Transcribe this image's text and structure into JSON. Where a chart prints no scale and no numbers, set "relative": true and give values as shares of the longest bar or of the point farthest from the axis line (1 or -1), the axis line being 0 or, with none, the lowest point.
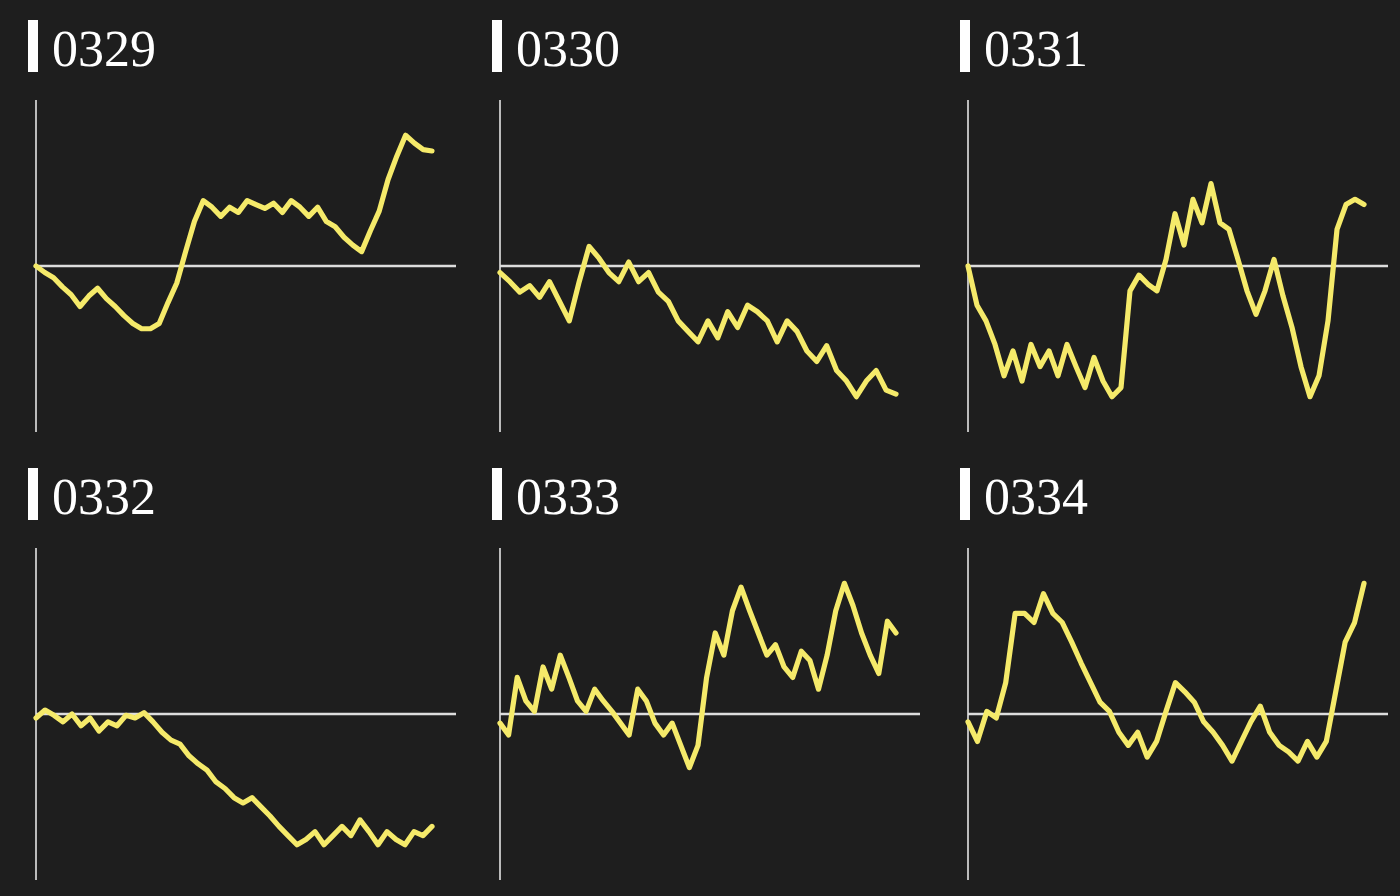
{
  "chart_data": [
    {
      "type": "line",
      "title": "0329",
      "relative": true,
      "color": "#f5ea6a",
      "categories": [
        null,
        null,
        null,
        null,
        null,
        null,
        null,
        null,
        null,
        null,
        null,
        null,
        null,
        null,
        null,
        null,
        null,
        null,
        null,
        null,
        null,
        null,
        null,
        null,
        null,
        null,
        null,
        null,
        null,
        null,
        null,
        null,
        null,
        null,
        null,
        null,
        null,
        null,
        null,
        null,
        null,
        null,
        null,
        null,
        null,
        null
      ],
      "values": [
        0,
        -0.05,
        -0.09,
        -0.16,
        -0.22,
        -0.31,
        -0.23,
        -0.17,
        -0.25,
        -0.31,
        -0.38,
        -0.44,
        -0.48,
        -0.48,
        -0.44,
        -0.28,
        -0.13,
        0.11,
        0.34,
        0.5,
        0.45,
        0.38,
        0.45,
        0.41,
        0.5,
        0.47,
        0.44,
        0.48,
        0.41,
        0.5,
        0.45,
        0.38,
        0.45,
        0.34,
        0.3,
        0.22,
        0.16,
        0.11,
        0.27,
        0.42,
        0.66,
        0.84,
        1,
        0.94,
        0.89,
        0.88
      ]
    },
    {
      "type": "line",
      "title": "0330",
      "relative": true,
      "color": "#f5ea6a",
      "categories": [
        null,
        null,
        null,
        null,
        null,
        null,
        null,
        null,
        null,
        null,
        null,
        null,
        null,
        null,
        null,
        null,
        null,
        null,
        null,
        null,
        null,
        null,
        null,
        null,
        null,
        null,
        null,
        null,
        null,
        null,
        null,
        null,
        null,
        null,
        null,
        null,
        null,
        null,
        null,
        null,
        null
      ],
      "values": [
        -0.05,
        -0.12,
        -0.2,
        -0.15,
        -0.24,
        -0.12,
        -0.27,
        -0.42,
        -0.12,
        0.15,
        0.06,
        -0.05,
        -0.12,
        0.03,
        -0.12,
        -0.05,
        -0.2,
        -0.27,
        -0.42,
        -0.5,
        -0.58,
        -0.42,
        -0.55,
        -0.35,
        -0.47,
        -0.3,
        -0.35,
        -0.42,
        -0.58,
        -0.42,
        -0.5,
        -0.65,
        -0.73,
        -0.61,
        -0.8,
        -0.88,
        -1,
        -0.88,
        -0.8,
        -0.95,
        -0.98
      ]
    },
    {
      "type": "line",
      "title": "0331",
      "relative": true,
      "color": "#f5ea6a",
      "categories": [
        null,
        null,
        null,
        null,
        null,
        null,
        null,
        null,
        null,
        null,
        null,
        null,
        null,
        null,
        null,
        null,
        null,
        null,
        null,
        null,
        null,
        null,
        null,
        null,
        null,
        null,
        null,
        null,
        null,
        null,
        null,
        null,
        null,
        null,
        null,
        null,
        null,
        null,
        null,
        null,
        null,
        null,
        null,
        null,
        null
      ],
      "values": [
        0,
        -0.3,
        -0.42,
        -0.6,
        -0.84,
        -0.65,
        -0.88,
        -0.6,
        -0.77,
        -0.65,
        -0.84,
        -0.6,
        -0.77,
        -0.93,
        -0.7,
        -0.88,
        -1,
        -0.93,
        -0.19,
        -0.07,
        -0.14,
        -0.19,
        0.05,
        0.4,
        0.16,
        0.51,
        0.33,
        0.63,
        0.33,
        0.28,
        0.05,
        -0.19,
        -0.37,
        -0.19,
        0.05,
        -0.23,
        -0.47,
        -0.77,
        -1,
        -0.84,
        -0.42,
        0.28,
        0.47,
        0.51,
        0.47
      ]
    },
    {
      "type": "line",
      "title": "0332",
      "relative": true,
      "color": "#f5ea6a",
      "categories": [
        null,
        null,
        null,
        null,
        null,
        null,
        null,
        null,
        null,
        null,
        null,
        null,
        null,
        null,
        null,
        null,
        null,
        null,
        null,
        null,
        null,
        null,
        null,
        null,
        null,
        null,
        null,
        null,
        null,
        null,
        null,
        null,
        null,
        null,
        null,
        null,
        null,
        null,
        null,
        null,
        null,
        null,
        null,
        null,
        null
      ],
      "values": [
        -0.03,
        0.03,
        -0.01,
        -0.06,
        0,
        -0.09,
        -0.03,
        -0.13,
        -0.06,
        -0.09,
        -0.01,
        -0.03,
        0.01,
        -0.06,
        -0.14,
        -0.2,
        -0.23,
        -0.32,
        -0.38,
        -0.43,
        -0.52,
        -0.57,
        -0.64,
        -0.68,
        -0.64,
        -0.71,
        -0.78,
        -0.86,
        -0.93,
        -1,
        -0.96,
        -0.9,
        -1,
        -0.93,
        -0.86,
        -0.93,
        -0.81,
        -0.9,
        -1,
        -0.9,
        -0.96,
        -1,
        -0.9,
        -0.93,
        -0.86
      ]
    },
    {
      "type": "line",
      "title": "0333",
      "relative": true,
      "color": "#f5ea6a",
      "categories": [
        null,
        null,
        null,
        null,
        null,
        null,
        null,
        null,
        null,
        null,
        null,
        null,
        null,
        null,
        null,
        null,
        null,
        null,
        null,
        null,
        null,
        null,
        null,
        null,
        null,
        null,
        null,
        null,
        null,
        null,
        null,
        null,
        null,
        null,
        null,
        null,
        null,
        null,
        null,
        null,
        null,
        null,
        null,
        null,
        null,
        null,
        null
      ],
      "values": [
        -0.07,
        -0.16,
        0.28,
        0.1,
        0.02,
        0.36,
        0.19,
        0.45,
        0.28,
        0.1,
        0.02,
        0.19,
        0.1,
        0.02,
        -0.07,
        -0.16,
        0.19,
        0.1,
        -0.07,
        -0.16,
        -0.07,
        -0.24,
        -0.41,
        -0.24,
        0.28,
        0.62,
        0.45,
        0.79,
        0.97,
        0.79,
        0.62,
        0.45,
        0.53,
        0.36,
        0.28,
        0.48,
        0.41,
        0.19,
        0.45,
        0.79,
        1,
        0.83,
        0.62,
        0.45,
        0.31,
        0.71,
        0.62
      ]
    },
    {
      "type": "line",
      "title": "0334",
      "relative": true,
      "color": "#f5ea6a",
      "categories": [
        null,
        null,
        null,
        null,
        null,
        null,
        null,
        null,
        null,
        null,
        null,
        null,
        null,
        null,
        null,
        null,
        null,
        null,
        null,
        null,
        null,
        null,
        null,
        null,
        null,
        null,
        null,
        null,
        null,
        null,
        null,
        null,
        null,
        null,
        null,
        null,
        null,
        null,
        null,
        null,
        null,
        null,
        null
      ],
      "values": [
        -0.06,
        -0.21,
        0.02,
        -0.03,
        0.24,
        0.77,
        0.77,
        0.7,
        0.92,
        0.77,
        0.7,
        0.55,
        0.39,
        0.24,
        0.09,
        0.02,
        -0.14,
        -0.24,
        -0.14,
        -0.33,
        -0.21,
        0.02,
        0.24,
        0.17,
        0.09,
        -0.06,
        -0.14,
        -0.24,
        -0.36,
        -0.21,
        -0.06,
        0.06,
        -0.14,
        -0.24,
        -0.29,
        -0.36,
        -0.21,
        -0.33,
        -0.21,
        0.17,
        0.55,
        0.7,
        1
      ]
    }
  ]
}
